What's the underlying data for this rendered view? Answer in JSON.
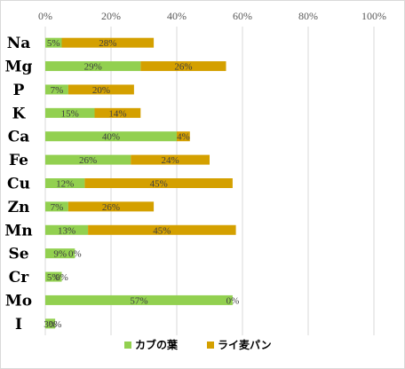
{
  "chart_data": {
    "type": "bar",
    "orientation": "horizontal",
    "stacked": true,
    "categories": [
      "Na",
      "Mg",
      "P",
      "K",
      "Ca",
      "Fe",
      "Cu",
      "Zn",
      "Mn",
      "Se",
      "Cr",
      "Mo",
      "I"
    ],
    "series": [
      {
        "name": "カブの葉",
        "color": "#92d050",
        "values": [
          5,
          29,
          7,
          15,
          40,
          26,
          12,
          7,
          13,
          9,
          5,
          57,
          3
        ],
        "labels": [
          "5%",
          "29%",
          "7%",
          "15%",
          "40%",
          "26%",
          "12%",
          "7%",
          "13%",
          "9%",
          "5%",
          "57%",
          "3%"
        ]
      },
      {
        "name": "ライ麦パン",
        "color": "#d4a000",
        "values": [
          28,
          26,
          20,
          14,
          4,
          24,
          45,
          26,
          45,
          0,
          0,
          0,
          0
        ],
        "labels": [
          "28%",
          "26%",
          "20%",
          "14%",
          "4%",
          "24%",
          "45%",
          "26%",
          "45%",
          "0%",
          "0%",
          "0%",
          "0%"
        ]
      }
    ],
    "xlim": [
      0,
      100
    ],
    "x_ticks": [
      "0%",
      "20%",
      "40%",
      "60%",
      "80%",
      "100%"
    ],
    "grid": true,
    "legend_position": "bottom",
    "title": "",
    "xlabel": "",
    "ylabel": ""
  }
}
